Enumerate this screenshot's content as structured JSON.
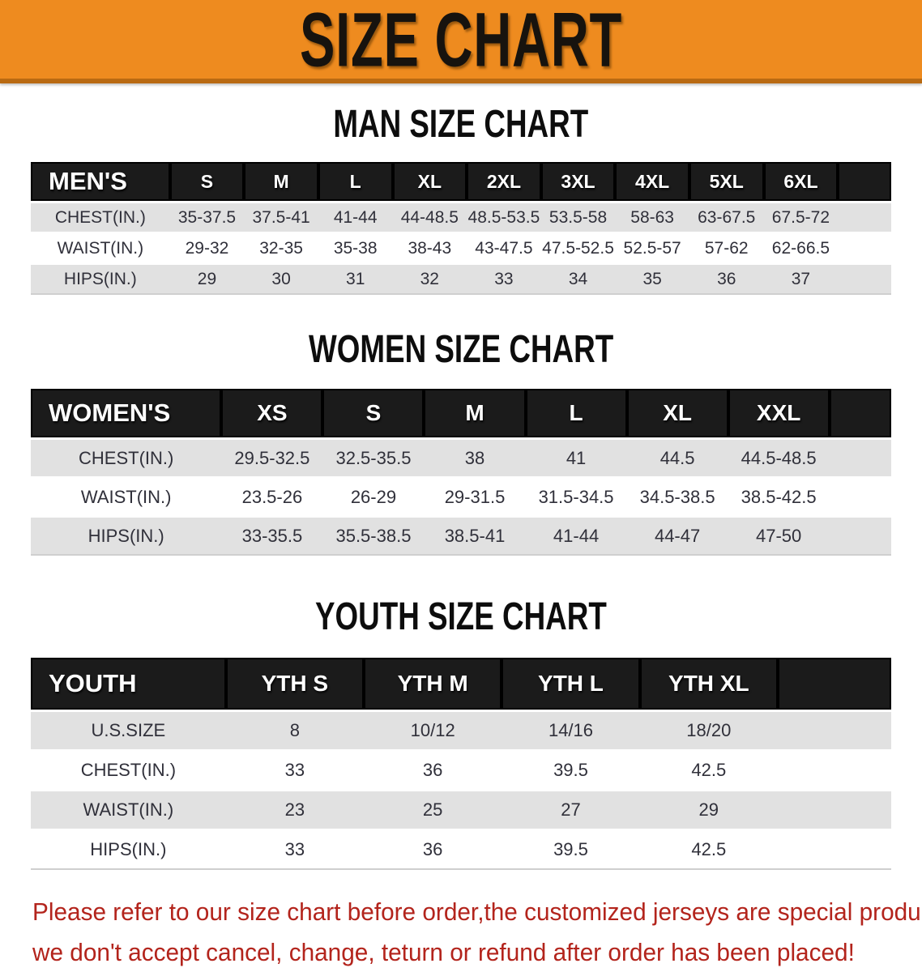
{
  "banner": {
    "title": "SIZE CHART",
    "bg_color": "#ee8b1f",
    "border_color": "#b96a12",
    "text_color": "#17130e"
  },
  "colors": {
    "table_header_bg": "#1b1b1b",
    "table_header_text": "#ffffff",
    "stripe_row_bg": "#e1e1e1",
    "value_text": "#30303a",
    "footer_text": "#b3241c"
  },
  "sections": [
    {
      "heading": "MAN SIZE CHART",
      "table": {
        "header_label": "MEN'S",
        "columns": [
          "S",
          "M",
          "L",
          "XL",
          "2XL",
          "3XL",
          "4XL",
          "5XL",
          "6XL"
        ],
        "rows": [
          {
            "label": "CHEST(IN.)",
            "values": [
              "35-37.5",
              "37.5-41",
              "41-44",
              "44-48.5",
              "48.5-53.5",
              "53.5-58",
              "58-63",
              "63-67.5",
              "67.5-72"
            ]
          },
          {
            "label": "WAIST(IN.)",
            "values": [
              "29-32",
              "32-35",
              "35-38",
              "38-43",
              "43-47.5",
              "47.5-52.5",
              "52.5-57",
              "57-62",
              "62-66.5"
            ]
          },
          {
            "label": "HIPS(IN.)",
            "values": [
              "29",
              "30",
              "31",
              "32",
              "33",
              "34",
              "35",
              "36",
              "37"
            ]
          }
        ]
      }
    },
    {
      "heading": "WOMEN SIZE CHART",
      "table": {
        "header_label": "WOMEN'S",
        "columns": [
          "XS",
          "S",
          "M",
          "L",
          "XL",
          "XXL"
        ],
        "rows": [
          {
            "label": "CHEST(IN.)",
            "values": [
              "29.5-32.5",
              "32.5-35.5",
              "38",
              "41",
              "44.5",
              "44.5-48.5"
            ]
          },
          {
            "label": "WAIST(IN.)",
            "values": [
              "23.5-26",
              "26-29",
              "29-31.5",
              "31.5-34.5",
              "34.5-38.5",
              "38.5-42.5"
            ]
          },
          {
            "label": "HIPS(IN.)",
            "values": [
              "33-35.5",
              "35.5-38.5",
              "38.5-41",
              "41-44",
              "44-47",
              "47-50"
            ]
          }
        ]
      }
    },
    {
      "heading": "YOUTH SIZE CHART",
      "table": {
        "header_label": "YOUTH",
        "columns": [
          "YTH S",
          "YTH M",
          "YTH L",
          "YTH XL"
        ],
        "rows": [
          {
            "label": "U.S.SIZE",
            "values": [
              "8",
              "10/12",
              "14/16",
              "18/20"
            ]
          },
          {
            "label": "CHEST(IN.)",
            "values": [
              "33",
              "36",
              "39.5",
              "42.5"
            ]
          },
          {
            "label": "WAIST(IN.)",
            "values": [
              "23",
              "25",
              "27",
              "29"
            ]
          },
          {
            "label": "HIPS(IN.)",
            "values": [
              "33",
              "36",
              "39.5",
              "42.5"
            ]
          }
        ]
      }
    }
  ],
  "footer": {
    "line1": "Please refer to our size chart before order,the customized jerseys are special products,",
    "line2": "we don't accept cancel, change, teturn or refund after order has been placed!"
  }
}
